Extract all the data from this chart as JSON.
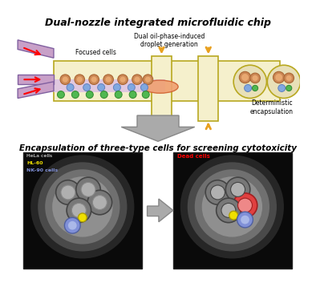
{
  "title_top": "Dual-nozzle integrated microfluidic chip",
  "title_bottom": "Encapsulation of three-type cells for screening cytotoxicity",
  "label_focused": "Focused cells",
  "label_dual_oil": "Dual oil-phase-induced\ndroplet generation",
  "label_deterministic": "Deterministic\nencapsulation",
  "label_hela": "HeLa cells",
  "label_hl60": "HL-60",
  "label_nk": "NK-90 cells",
  "label_dead": "Dead cells",
  "bg_color": "#ffffff",
  "chip_fill": "#f5f0cc",
  "chip_edge": "#b8a820",
  "nozzle_fill": "#c8a0c8",
  "nozzle_edge": "#8060a0",
  "oil_arrow_color": "#e8a020",
  "hela_color": "#cc8855",
  "hela_inner": "#e8a870",
  "hela_edge": "#aa6633",
  "blue_cell_color": "#80a8e0",
  "blue_cell_edge": "#6080c0",
  "green_cell_color": "#50b850",
  "green_cell_edge": "#308830",
  "yellow_dot_color": "#f0e000",
  "red_dead_color": "#e04040",
  "arrow_gray": "#aaaaaa",
  "arrow_edge": "#888888"
}
